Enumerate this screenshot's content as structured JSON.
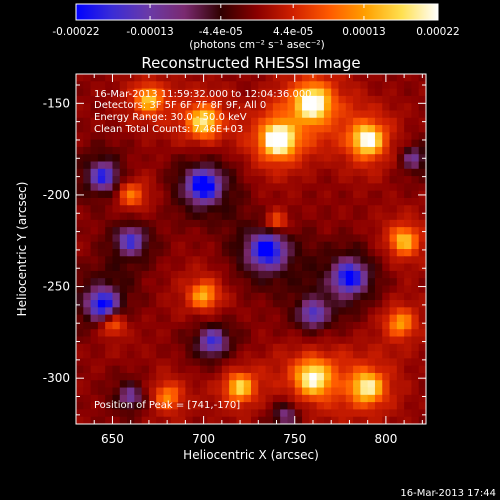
{
  "colorbar": {
    "tick_labels": [
      "-0.00022",
      "-0.00013",
      "-4.4e-05",
      "4.4e-05",
      "0.00013",
      "0.00022"
    ],
    "tick_values": [
      -0.00022,
      -0.00013,
      -4.4e-05,
      4.4e-05,
      0.00013,
      0.00022
    ],
    "range": [
      -0.00022,
      0.00022
    ],
    "unit_label": "(photons cm⁻² s⁻¹ asec⁻²)",
    "stops": [
      "#0000ff",
      "#3a2cd6",
      "#6a3aa8",
      "#7a2a70",
      "#300000",
      "#8a0000",
      "#d02000",
      "#ff5a00",
      "#ffa000",
      "#ffe050",
      "#ffffff"
    ]
  },
  "chart_data": {
    "type": "heatmap",
    "title": "Reconstructed RHESSI Image",
    "xlabel": "Heliocentric X (arcsec)",
    "ylabel": "Heliocentric Y (arcsec)",
    "xlim": [
      630,
      822
    ],
    "ylim": [
      -325,
      -134
    ],
    "xticks": [
      650,
      700,
      750,
      800
    ],
    "yticks": [
      -150,
      -200,
      -250,
      -300
    ],
    "xtick_labels": [
      "650",
      "700",
      "750",
      "800"
    ],
    "ytick_labels": [
      "-150",
      "-200",
      "-250",
      "-300"
    ],
    "annotation_lines": [
      "16-Mar-2013 11:59:32.000 to 12:04:36.000",
      "Detectors: 3F 5F 6F 7F 8F 9F, All 0",
      "Energy Range: 30.0 - 50.0 keV",
      "Clean    Total Counts: 7.46E+03"
    ],
    "peak_label": "Position of Peak = [741,-170]",
    "peak": [
      741,
      -170
    ],
    "blobs": [
      {
        "x": 741,
        "y": -170,
        "v": 1.0,
        "s": 14
      },
      {
        "x": 760,
        "y": -150,
        "v": 0.85,
        "s": 16
      },
      {
        "x": 790,
        "y": -170,
        "v": 0.8,
        "s": 14
      },
      {
        "x": 700,
        "y": -160,
        "v": 0.65,
        "s": 14
      },
      {
        "x": 670,
        "y": -148,
        "v": 0.55,
        "s": 12
      },
      {
        "x": 760,
        "y": -300,
        "v": 0.75,
        "s": 16
      },
      {
        "x": 790,
        "y": -305,
        "v": 0.7,
        "s": 14
      },
      {
        "x": 720,
        "y": -305,
        "v": 0.6,
        "s": 12
      },
      {
        "x": 700,
        "y": -255,
        "v": 0.5,
        "s": 12
      },
      {
        "x": 810,
        "y": -225,
        "v": 0.55,
        "s": 12
      },
      {
        "x": 660,
        "y": -200,
        "v": 0.4,
        "s": 12
      },
      {
        "x": 650,
        "y": -270,
        "v": 0.45,
        "s": 12
      },
      {
        "x": 680,
        "y": -310,
        "v": 0.4,
        "s": 12
      },
      {
        "x": 740,
        "y": -215,
        "v": 0.4,
        "s": 10
      },
      {
        "x": 808,
        "y": -270,
        "v": 0.45,
        "s": 12
      },
      {
        "x": 700,
        "y": -195,
        "v": -0.9,
        "s": 14
      },
      {
        "x": 735,
        "y": -230,
        "v": -0.85,
        "s": 16
      },
      {
        "x": 780,
        "y": -245,
        "v": -0.8,
        "s": 14
      },
      {
        "x": 645,
        "y": -260,
        "v": -0.85,
        "s": 14
      },
      {
        "x": 660,
        "y": -225,
        "v": -0.6,
        "s": 12
      },
      {
        "x": 645,
        "y": -190,
        "v": -0.7,
        "s": 12
      },
      {
        "x": 760,
        "y": -265,
        "v": -0.55,
        "s": 12
      },
      {
        "x": 705,
        "y": -280,
        "v": -0.6,
        "s": 12
      },
      {
        "x": 745,
        "y": -320,
        "v": -0.4,
        "s": 10
      },
      {
        "x": 660,
        "y": -310,
        "v": -0.45,
        "s": 10
      },
      {
        "x": 815,
        "y": -180,
        "v": -0.4,
        "s": 10
      }
    ]
  },
  "footer": {
    "timestamp": "16-Mar-2013 17:44"
  }
}
